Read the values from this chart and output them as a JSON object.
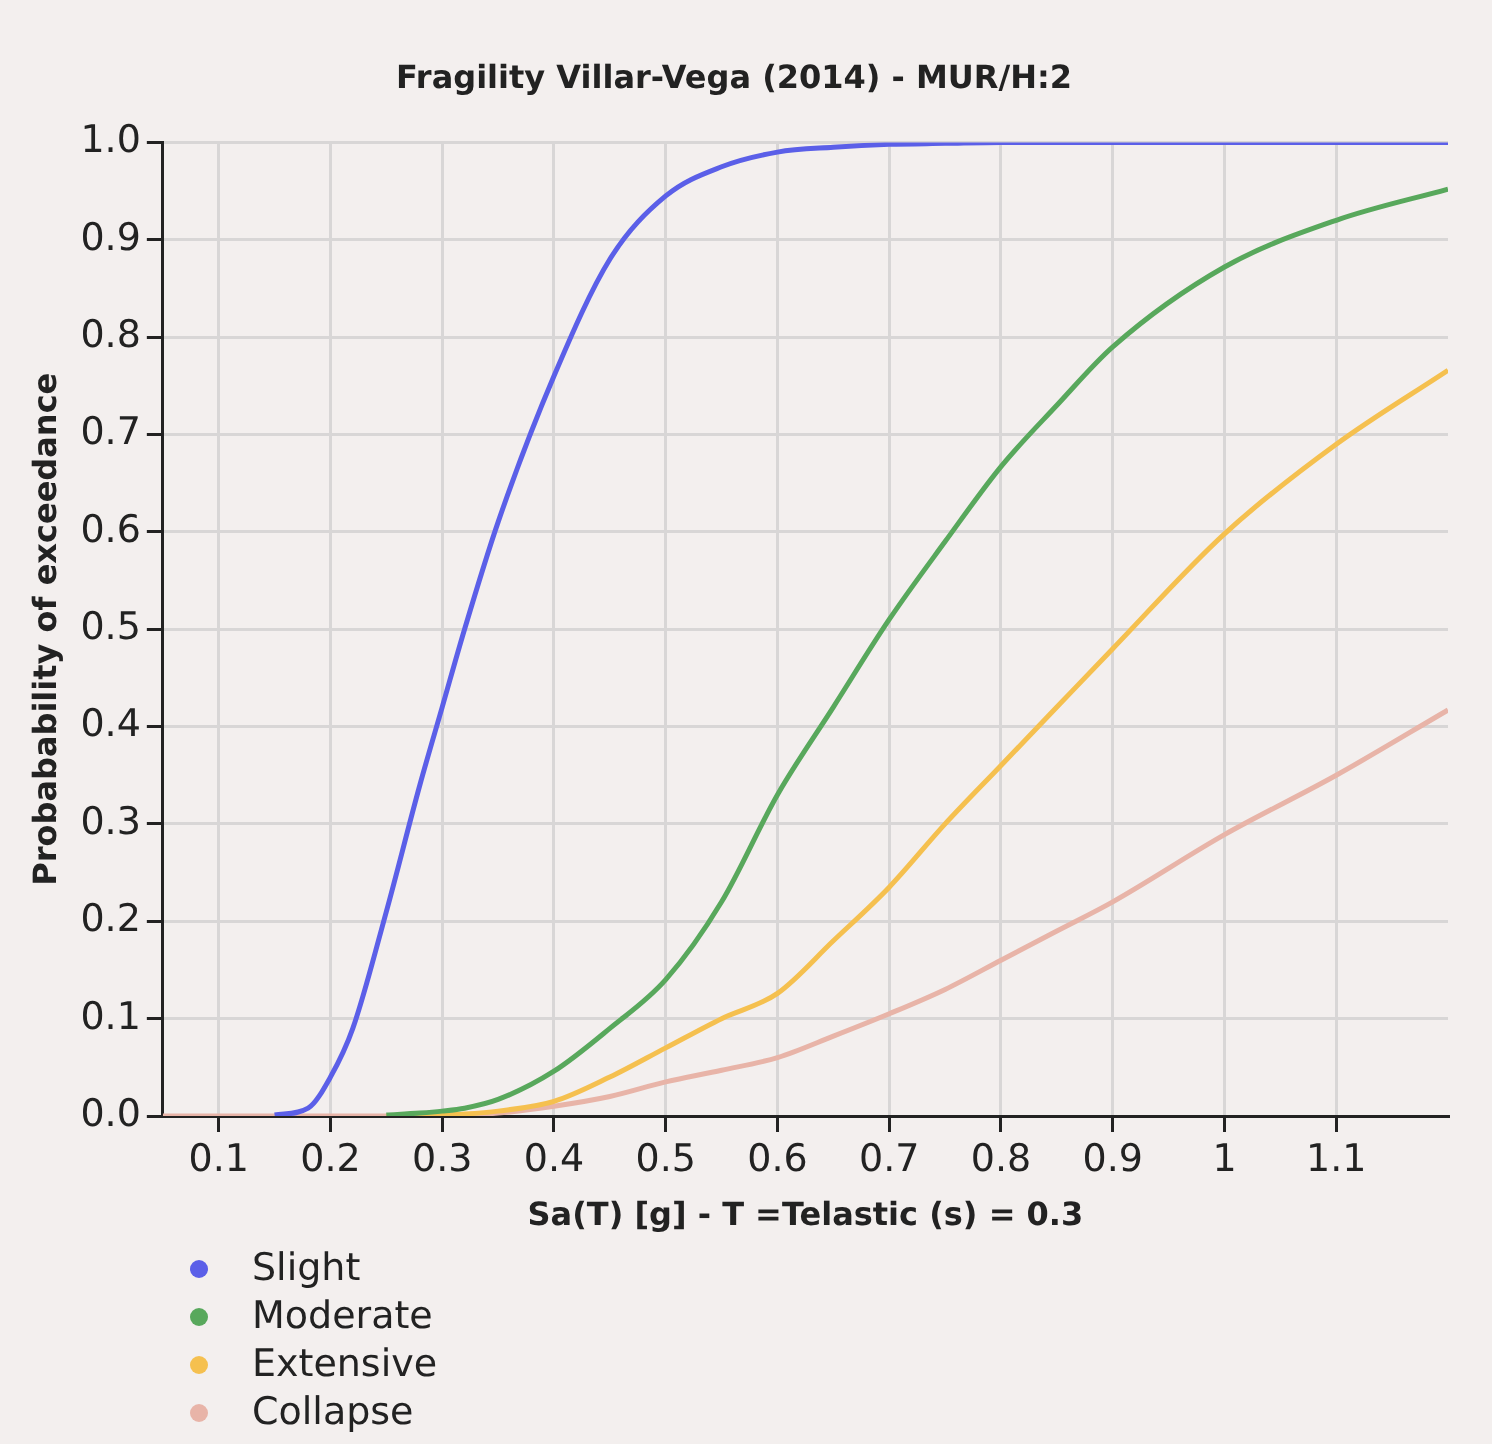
{
  "chart_data": {
    "type": "line",
    "title": "Fragility Villar-Vega (2014) - MUR/H:2",
    "xlabel": "Sa(T) [g] - T =Telastic (s) = 0.3",
    "ylabel": "Probabability of exceedance",
    "x": [
      0.05,
      0.1,
      0.15,
      0.18,
      0.2,
      0.22,
      0.25,
      0.28,
      0.3,
      0.32,
      0.35,
      0.4,
      0.45,
      0.5,
      0.55,
      0.6,
      0.65,
      0.7,
      0.75,
      0.8,
      0.85,
      0.9,
      1.0,
      1.1,
      1.2
    ],
    "series": [
      {
        "name": "Slight",
        "color": "#5b5fe8",
        "values": [
          null,
          null,
          0.001,
          0.008,
          0.04,
          0.09,
          0.21,
          0.34,
          0.42,
          0.5,
          0.61,
          0.76,
          0.88,
          0.945,
          0.975,
          0.99,
          0.995,
          0.998,
          0.999,
          1,
          1,
          1,
          1,
          1,
          1
        ]
      },
      {
        "name": "Moderate",
        "color": "#58a85c",
        "values": [
          null,
          null,
          null,
          null,
          null,
          null,
          0.001,
          0.003,
          0.005,
          0.008,
          0.017,
          0.046,
          0.09,
          0.14,
          0.22,
          0.33,
          0.42,
          0.51,
          0.59,
          0.667,
          0.73,
          0.79,
          0.872,
          0.92,
          0.952
        ]
      },
      {
        "name": "Extensive",
        "color": "#f5c04f",
        "values": [
          null,
          null,
          null,
          null,
          null,
          null,
          0,
          0,
          0.001,
          0.002,
          0.005,
          0.015,
          0.04,
          0.07,
          0.1,
          0.126,
          0.18,
          0.235,
          0.3,
          0.36,
          0.42,
          0.48,
          0.598,
          0.69,
          0.766
        ]
      },
      {
        "name": "Collapse",
        "color": "#e8b4a8",
        "values": [
          0,
          0,
          0,
          0,
          0,
          0,
          0,
          0,
          0,
          0.001,
          0.003,
          0.01,
          0.02,
          0.035,
          0.047,
          0.06,
          0.082,
          0.105,
          0.13,
          0.16,
          0.19,
          0.22,
          0.289,
          0.35,
          0.417
        ]
      }
    ],
    "xlim": [
      0.05,
      1.2
    ],
    "xticks": [
      0.1,
      0.2,
      0.3,
      0.4,
      0.5,
      0.6,
      0.7,
      0.8,
      0.9,
      1,
      1.1
    ],
    "ylim": [
      0,
      1
    ],
    "yticks": [
      {
        "value": 0,
        "label": "0.0"
      },
      {
        "value": 0.1,
        "label": "0.1"
      },
      {
        "value": 0.2,
        "label": "0.2"
      },
      {
        "value": 0.3,
        "label": "0.3"
      },
      {
        "value": 0.4,
        "label": "0.4"
      },
      {
        "value": 0.5,
        "label": "0.5"
      },
      {
        "value": 0.6,
        "label": "0.6"
      },
      {
        "value": 0.7,
        "label": "0.7"
      },
      {
        "value": 0.8,
        "label": "0.8"
      },
      {
        "value": 0.9,
        "label": "0.9"
      },
      {
        "value": 1,
        "label": "1.0"
      }
    ],
    "grid": true,
    "legend": "bottom left",
    "marker": "none",
    "line_style": "solid"
  }
}
